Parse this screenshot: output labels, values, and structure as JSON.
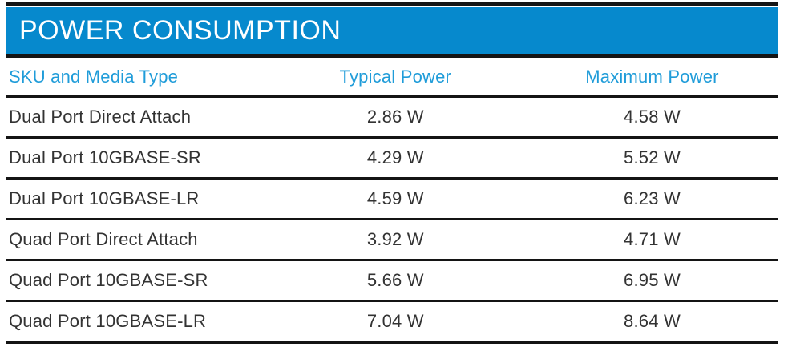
{
  "title": "POWER CONSUMPTION",
  "colors": {
    "title_bar_background": "#0689cd",
    "title_text": "#ffffff",
    "header_text": "#1f9cd9",
    "body_text": "#333333",
    "rule": "#141414"
  },
  "table": {
    "columns": [
      {
        "label": "SKU and Media Type",
        "align": "left"
      },
      {
        "label": "Typical Power",
        "align": "center"
      },
      {
        "label": "Maximum Power",
        "align": "center"
      }
    ],
    "rows": [
      {
        "sku": "Dual Port Direct Attach",
        "typical": "2.86 W",
        "maximum": "4.58 W"
      },
      {
        "sku": "Dual Port 10GBASE-SR",
        "typical": "4.29 W",
        "maximum": "5.52 W"
      },
      {
        "sku": "Dual Port 10GBASE-LR",
        "typical": "4.59 W",
        "maximum": "6.23 W"
      },
      {
        "sku": "Quad Port Direct Attach",
        "typical": "3.92 W",
        "maximum": "4.71 W"
      },
      {
        "sku": "Quad Port 10GBASE-SR",
        "typical": "5.66 W",
        "maximum": "6.95 W"
      },
      {
        "sku": "Quad Port 10GBASE-LR",
        "typical": "7.04 W",
        "maximum": "8.64 W"
      }
    ]
  }
}
